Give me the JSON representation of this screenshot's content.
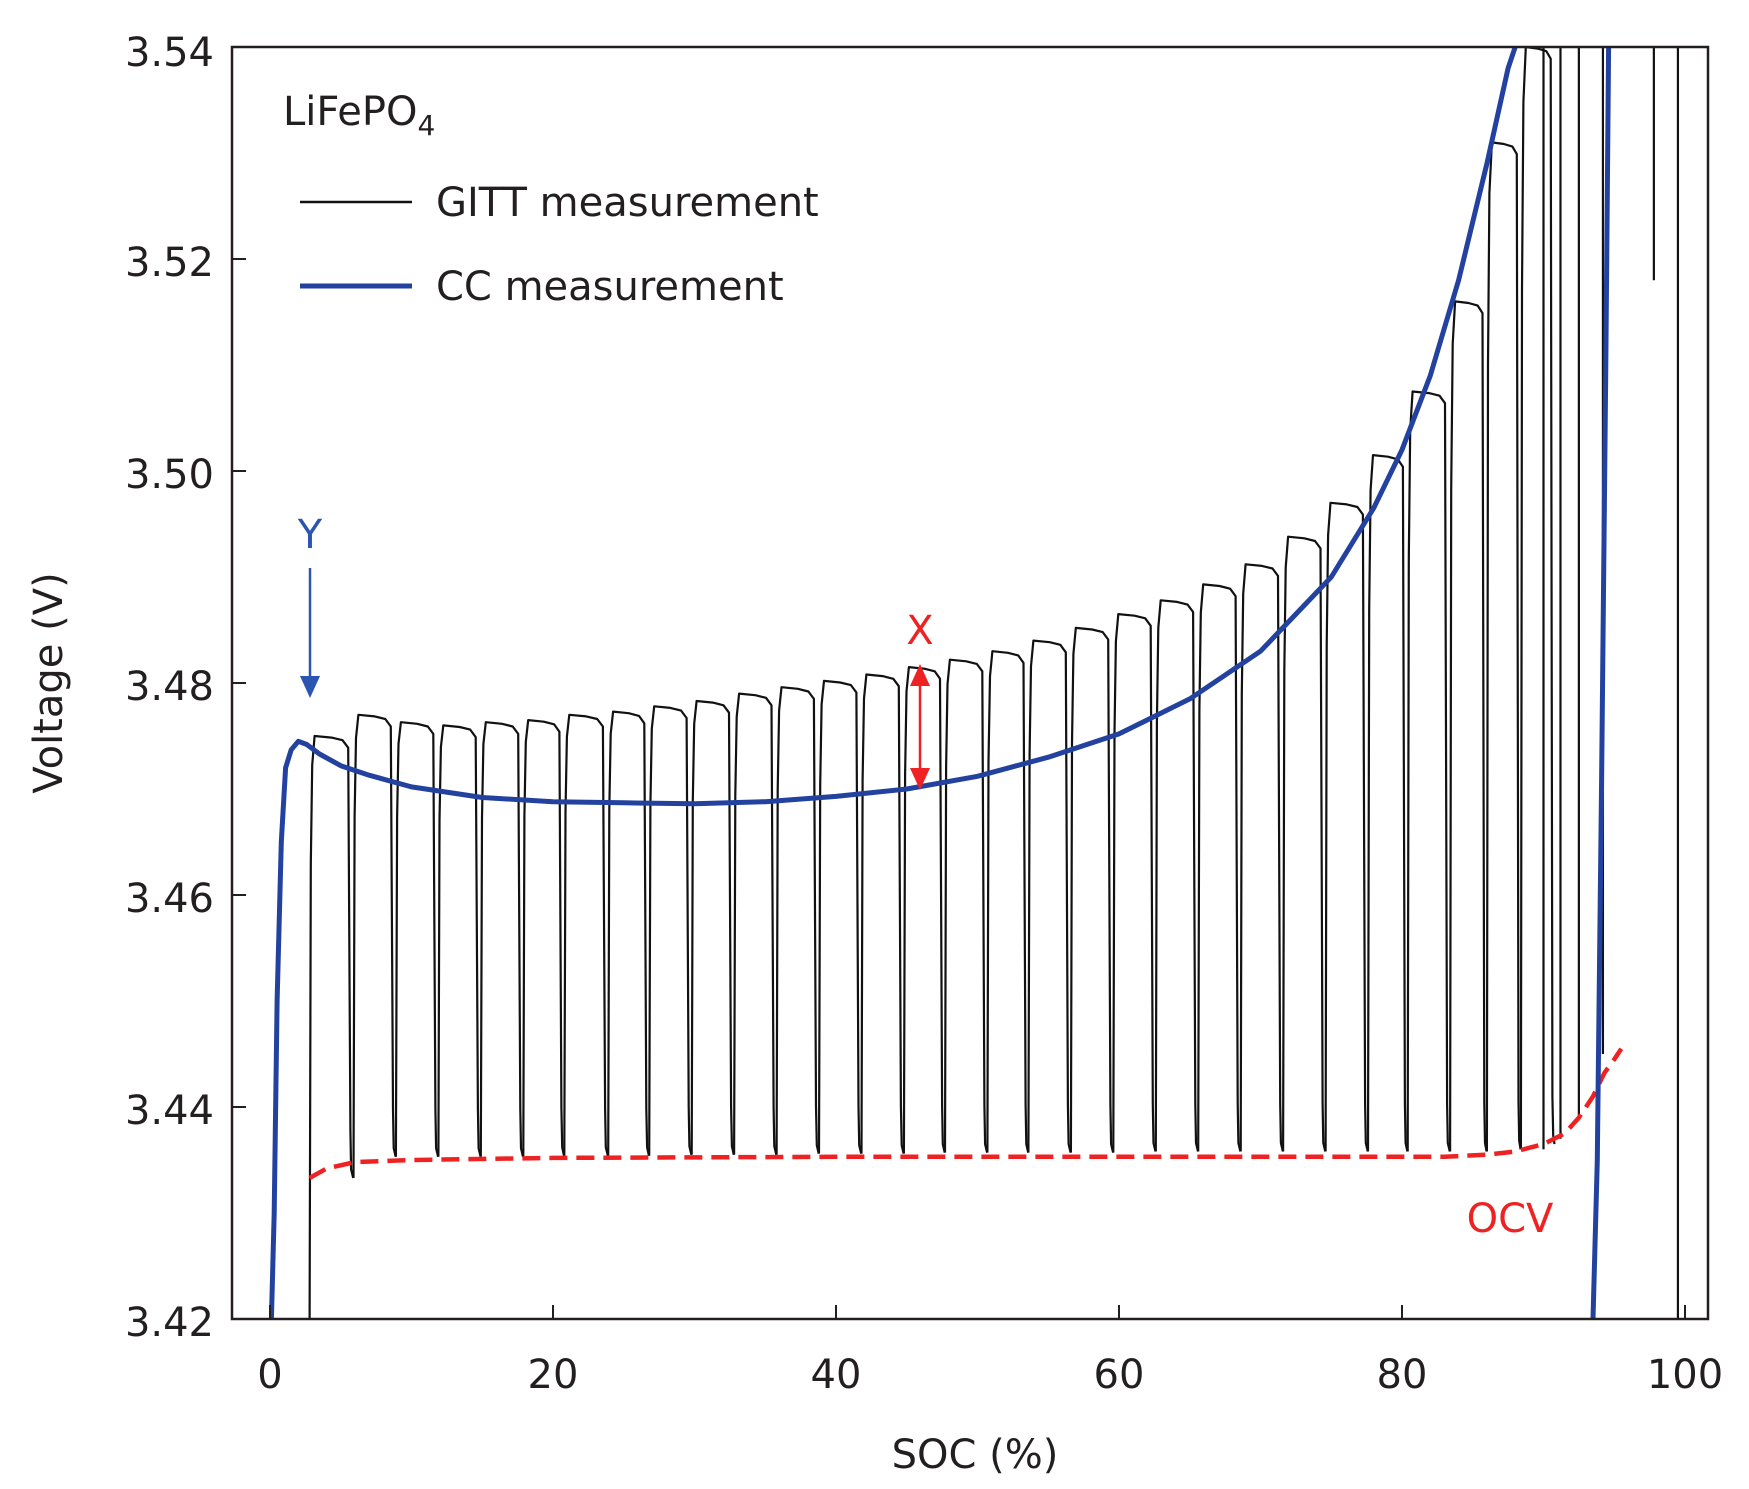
{
  "chart_data": {
    "type": "line",
    "title": "LiFePO",
    "title_subscript": "4",
    "xlabel": "SOC (%)",
    "ylabel": "Voltage (V)",
    "xlim": [
      0,
      100
    ],
    "ylim": [
      3.42,
      3.54
    ],
    "x_ticks": [
      0,
      20,
      40,
      60,
      80,
      100
    ],
    "x_tick_labels": [
      "0",
      "20",
      "40",
      "60",
      "80",
      "100"
    ],
    "y_ticks": [
      3.42,
      3.44,
      3.46,
      3.48,
      3.5,
      3.52,
      3.54
    ],
    "y_tick_labels": [
      "3.42",
      "3.44",
      "3.46",
      "3.48",
      "3.50",
      "3.52",
      "3.54"
    ],
    "grid": false,
    "legend_position": "top-left",
    "colors": {
      "gitt": "#111111",
      "cc": "#2342a0",
      "ocv": "#ee2222",
      "axis": "#231f20"
    },
    "series": [
      {
        "name": "GITT measurement",
        "style": "thin black line",
        "pulse_starts": [
          2.8,
          5.9,
          8.9,
          11.9,
          14.9,
          17.9,
          20.8,
          23.9,
          26.8,
          29.8,
          32.8,
          35.8,
          38.8,
          41.8,
          44.8,
          47.7,
          50.7,
          53.6,
          56.6,
          59.6,
          62.6,
          65.6,
          68.6,
          71.6,
          74.6,
          77.6,
          80.4,
          83.4,
          86.0,
          88.4
        ],
        "pulse_peaks": [
          3.475,
          3.477,
          3.4763,
          3.476,
          3.4763,
          3.4765,
          3.477,
          3.4773,
          3.4778,
          3.4783,
          3.479,
          3.4796,
          3.4802,
          3.4808,
          3.4815,
          3.4822,
          3.483,
          3.484,
          3.4852,
          3.4865,
          3.4878,
          3.4893,
          3.4912,
          3.4938,
          3.497,
          3.5015,
          3.5075,
          3.516,
          3.531,
          3.54
        ],
        "relaxed_values": [
          3.4333,
          3.4353,
          3.4353,
          3.4353,
          3.4353,
          3.4354,
          3.4354,
          3.4354,
          3.4355,
          3.4355,
          3.4355,
          3.4356,
          3.4356,
          3.4356,
          3.4357,
          3.4357,
          3.4357,
          3.4357,
          3.4357,
          3.4358,
          3.4358,
          3.4358,
          3.4358,
          3.4358,
          3.4358,
          3.4358,
          3.4358,
          3.4358,
          3.436,
          3.4365
        ],
        "end_spikes_x": [
          90.0,
          91.2,
          92.5,
          94.2,
          97.8,
          99.5
        ],
        "end_spikes_low": [
          3.436,
          3.437,
          3.439,
          3.445,
          3.518,
          3.42
        ],
        "end_spikes_high": [
          3.54,
          3.54,
          3.54,
          3.54,
          3.54,
          3.54
        ]
      },
      {
        "name": "CC measurement",
        "style": "thick blue line",
        "x": [
          0.1,
          0.3,
          0.5,
          0.8,
          1.1,
          1.5,
          2.0,
          2.6,
          3.5,
          5.0,
          7.0,
          10.0,
          15.0,
          20.0,
          25.0,
          30.0,
          35.0,
          40.0,
          45.0,
          50.0,
          55.0,
          60.0,
          65.0,
          70.0,
          75.0,
          78.0,
          80.0,
          82.0,
          84.0,
          86.0,
          87.5,
          88.0
        ],
        "y": [
          3.42,
          3.43,
          3.45,
          3.465,
          3.472,
          3.4737,
          3.4745,
          3.4742,
          3.4733,
          3.4722,
          3.4713,
          3.4702,
          3.4692,
          3.4688,
          3.4687,
          3.4686,
          3.4688,
          3.4693,
          3.47,
          3.4712,
          3.473,
          3.4752,
          3.4785,
          3.483,
          3.49,
          3.4965,
          3.502,
          3.509,
          3.518,
          3.529,
          3.538,
          3.54
        ],
        "tail_x": [
          93.5,
          93.8,
          94.1,
          94.4,
          94.6
        ],
        "tail_y": [
          3.42,
          3.435,
          3.47,
          3.51,
          3.54
        ]
      },
      {
        "name": "OCV",
        "style": "red dashed line",
        "x": [
          2.8,
          4.0,
          6.0,
          10.0,
          20.0,
          40.0,
          60.0,
          80.0,
          83.0,
          86.0,
          88.0,
          90.0,
          91.5,
          92.5,
          93.5,
          94.3,
          95.0,
          95.5
        ],
        "y": [
          3.4333,
          3.4342,
          3.4348,
          3.435,
          3.4352,
          3.4353,
          3.4353,
          3.4353,
          3.4353,
          3.4355,
          3.4358,
          3.4365,
          3.4375,
          3.439,
          3.441,
          3.4432,
          3.4445,
          3.4455
        ]
      }
    ],
    "legend": [
      {
        "label": "GITT measurement",
        "series": "GITT measurement"
      },
      {
        "label": "CC measurement",
        "series": "CC measurement"
      }
    ],
    "annotations": [
      {
        "text": "Y",
        "color": "#2b55b0",
        "x": 2.8,
        "y": 3.4805,
        "description": "blue down arrow pointing to CC peak"
      },
      {
        "text": "X",
        "color": "#ee2222",
        "x": 46.0,
        "y_top": 3.4822,
        "y_bottom": 3.4712,
        "description": "red double-headed arrow between GITT peak and CC curve"
      },
      {
        "text": "OCV",
        "color": "#ee2222",
        "x": 88.5,
        "y": 3.4305
      }
    ]
  }
}
